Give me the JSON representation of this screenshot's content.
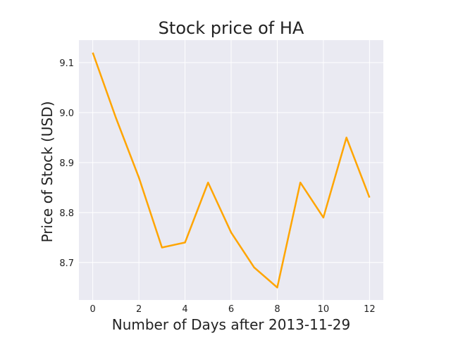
{
  "chart_data": {
    "type": "line",
    "title": "Stock price of HA",
    "xlabel": "Number of Days after 2013-11-29",
    "ylabel": "Price of Stock (USD)",
    "xlim": [
      -0.6,
      12.6
    ],
    "ylim": [
      8.625,
      9.145
    ],
    "xticks": [
      0,
      2,
      4,
      6,
      8,
      10,
      12
    ],
    "yticks": [
      8.7,
      8.8,
      8.9,
      9.0,
      9.1
    ],
    "ytick_labels": [
      "8.7",
      "8.8",
      "8.9",
      "9.0",
      "9.1"
    ],
    "grid": true,
    "series": [
      {
        "color": "#FFA500",
        "x": [
          0,
          1,
          2,
          3,
          4,
          5,
          6,
          7,
          8,
          9,
          10,
          11,
          12
        ],
        "y": [
          9.12,
          8.99,
          8.87,
          8.73,
          8.74,
          8.86,
          8.76,
          8.69,
          8.65,
          8.86,
          8.79,
          8.95,
          8.83
        ]
      }
    ],
    "background": "#EAEAF2",
    "grid_color": "#FFFFFF"
  }
}
